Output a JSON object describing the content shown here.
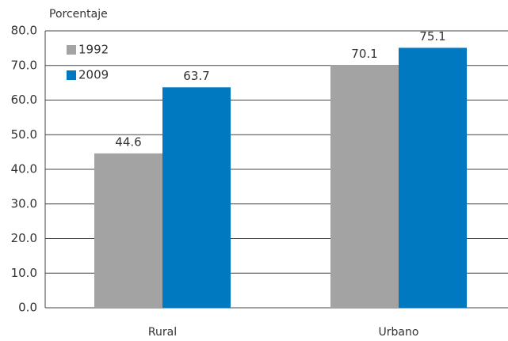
{
  "chart_data": {
    "type": "bar",
    "y_label": "Porcentaje",
    "categories": [
      "Rural",
      "Urbano"
    ],
    "series": [
      {
        "name": "1992",
        "color": "#a3a3a3",
        "values": [
          44.6,
          70.1
        ]
      },
      {
        "name": "2009",
        "color": "#0079c1",
        "values": [
          63.7,
          75.1
        ]
      }
    ],
    "ylim": [
      0,
      80
    ],
    "yticks": [
      {
        "value": 0,
        "label": "0.0"
      },
      {
        "value": 10,
        "label": "10.0"
      },
      {
        "value": 20,
        "label": "20.0"
      },
      {
        "value": 30,
        "label": "30.0"
      },
      {
        "value": 40,
        "label": "40.0"
      },
      {
        "value": 50,
        "label": "50.0"
      },
      {
        "value": 60,
        "label": "60.0"
      },
      {
        "value": 70,
        "label": "70.0"
      },
      {
        "value": 80,
        "label": "80.0"
      }
    ],
    "grid": true,
    "legend": "top-left"
  }
}
